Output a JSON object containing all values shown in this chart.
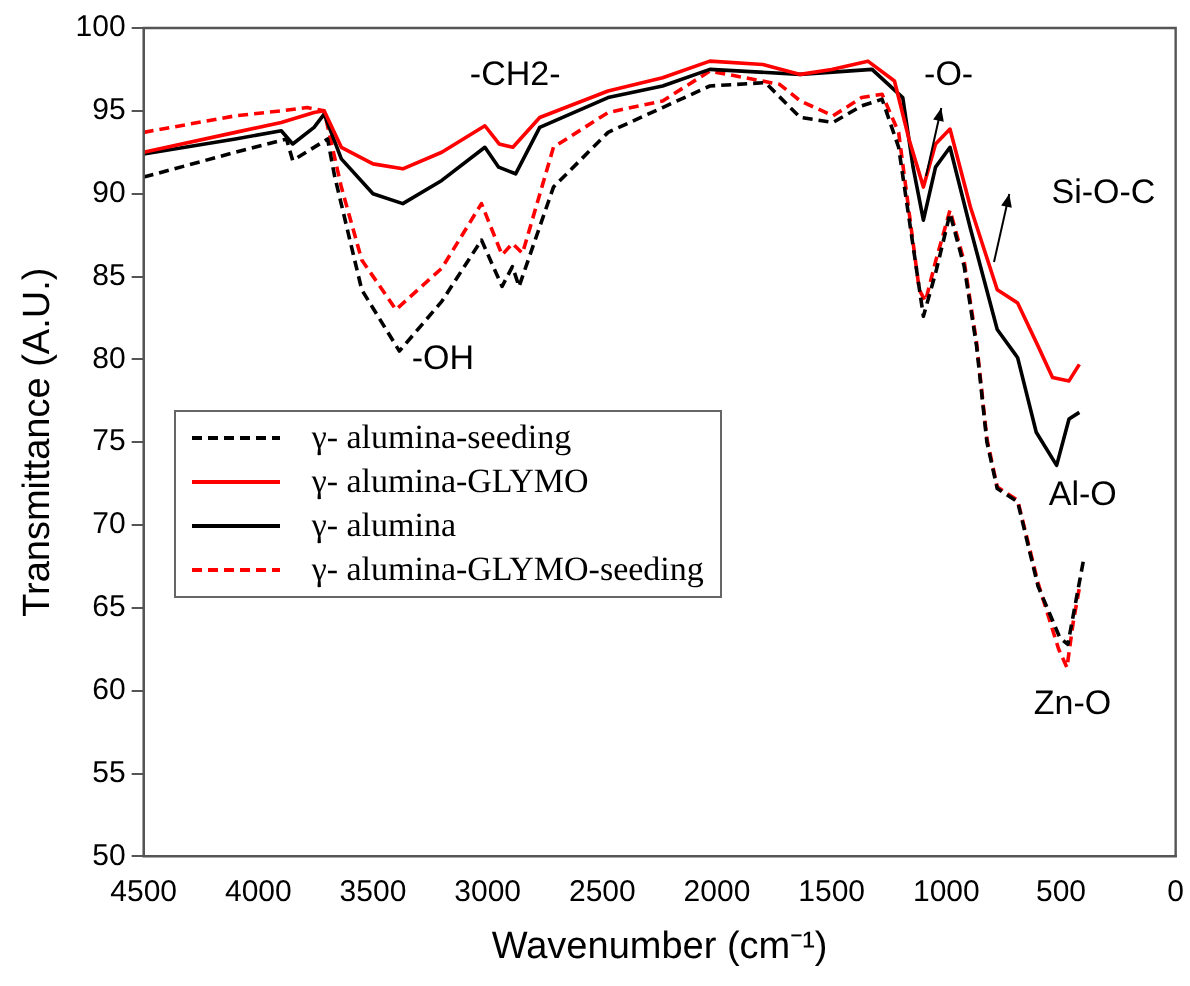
{
  "chart_data": {
    "type": "line",
    "xlabel": "Wavenumber (cm⁻¹)",
    "ylabel": "Transmittance (A.U.)",
    "xlim": [
      4500,
      0
    ],
    "xticks": [
      4500,
      4000,
      3500,
      3000,
      2500,
      2000,
      1500,
      1000,
      500,
      0
    ],
    "ylim": [
      50,
      100
    ],
    "yticks": [
      50,
      55,
      60,
      65,
      70,
      75,
      80,
      85,
      90,
      95,
      100
    ],
    "grid": false,
    "legend": "left",
    "marker": "none",
    "series": [
      {
        "name": "γ- alumina-seeding",
        "color": "#000000",
        "line_style": "dashed",
        "x": [
          4500,
          4100,
          3877,
          3850,
          3698,
          3668,
          3549,
          3385,
          3200,
          3027,
          2937,
          2892,
          2863,
          2713,
          2475,
          2237,
          2031,
          1789,
          1637,
          1494,
          1369,
          1280,
          1208,
          1100,
          1047,
          984,
          922,
          868,
          823,
          778,
          689,
          600,
          505,
          470,
          403
        ],
        "values": [
          91.0,
          92.5,
          93.3,
          92.0,
          93.3,
          91.1,
          84.2,
          80.5,
          83.5,
          87.2,
          84.4,
          85.6,
          84.4,
          90.4,
          93.7,
          95.2,
          96.5,
          96.7,
          94.6,
          94.3,
          95.3,
          95.7,
          92.8,
          82.6,
          85.2,
          88.8,
          85.6,
          80.8,
          75.0,
          72.2,
          71.4,
          66.3,
          63.2,
          62.8,
          67.8
        ]
      },
      {
        "name": "γ- alumina-GLYMO",
        "color": "#ff0000",
        "line_style": "solid",
        "x": [
          4500,
          4100,
          3900,
          3757,
          3713,
          3638,
          3500,
          3370,
          3200,
          3012,
          2950,
          2890,
          2773,
          2475,
          2237,
          2031,
          1800,
          1637,
          1500,
          1342,
          1226,
          1163,
          1100,
          1047,
          984,
          895,
          778,
          689,
          600,
          537,
          465,
          420
        ],
        "values": [
          92.5,
          93.7,
          94.3,
          94.9,
          95.0,
          92.8,
          91.8,
          91.5,
          92.5,
          94.1,
          93.0,
          92.8,
          94.6,
          96.2,
          97.0,
          98.0,
          97.8,
          97.2,
          97.5,
          98.0,
          96.8,
          93.3,
          90.4,
          93.0,
          93.9,
          89.2,
          84.2,
          83.4,
          80.8,
          78.9,
          78.7,
          79.7
        ]
      },
      {
        "name": "γ- alumina",
        "color": "#000000",
        "line_style": "solid",
        "x": [
          4500,
          4100,
          3900,
          3850,
          3757,
          3713,
          3638,
          3500,
          3370,
          3200,
          3012,
          2952,
          2878,
          2773,
          2475,
          2237,
          2031,
          1637,
          1324,
          1190,
          1145,
          1100,
          1047,
          984,
          895,
          778,
          689,
          608,
          519,
          465,
          420
        ],
        "values": [
          92.4,
          93.3,
          93.8,
          93.0,
          94.0,
          94.8,
          92.1,
          90.0,
          89.4,
          90.8,
          92.8,
          91.6,
          91.2,
          94.0,
          95.8,
          96.5,
          97.5,
          97.2,
          97.5,
          95.8,
          91.6,
          88.4,
          91.6,
          92.8,
          87.9,
          81.8,
          80.1,
          75.6,
          73.6,
          76.4,
          76.8
        ]
      },
      {
        "name": "γ- alumina-GLYMO-seeding",
        "color": "#ff0000",
        "line_style": "dashed",
        "x": [
          4500,
          4100,
          3900,
          3787,
          3713,
          3638,
          3549,
          3400,
          3200,
          3027,
          2937,
          2892,
          2848,
          2713,
          2475,
          2237,
          2031,
          1727,
          1637,
          1494,
          1369,
          1280,
          1208,
          1118,
          1091,
          1047,
          984,
          922,
          868,
          823,
          778,
          689,
          600,
          510,
          474,
          447,
          420
        ],
        "values": [
          93.7,
          94.7,
          95.0,
          95.2,
          95.0,
          90.4,
          86.0,
          83.0,
          85.5,
          89.4,
          86.3,
          87.0,
          86.4,
          92.8,
          94.9,
          95.6,
          97.4,
          96.6,
          95.6,
          94.7,
          95.8,
          96.0,
          93.7,
          84.2,
          83.5,
          85.9,
          89.0,
          85.9,
          81.0,
          75.2,
          72.3,
          71.5,
          66.5,
          62.5,
          61.4,
          64.1,
          66.2
        ]
      }
    ],
    "annotations": [
      "-CH2-",
      "-OH",
      {
        "text": "-O-",
        "x": 1100,
        "y": 90.4
      },
      {
        "text": "Si-O-C",
        "x": 800,
        "y": 85.2
      },
      "Al-O",
      "Zn-O"
    ]
  }
}
